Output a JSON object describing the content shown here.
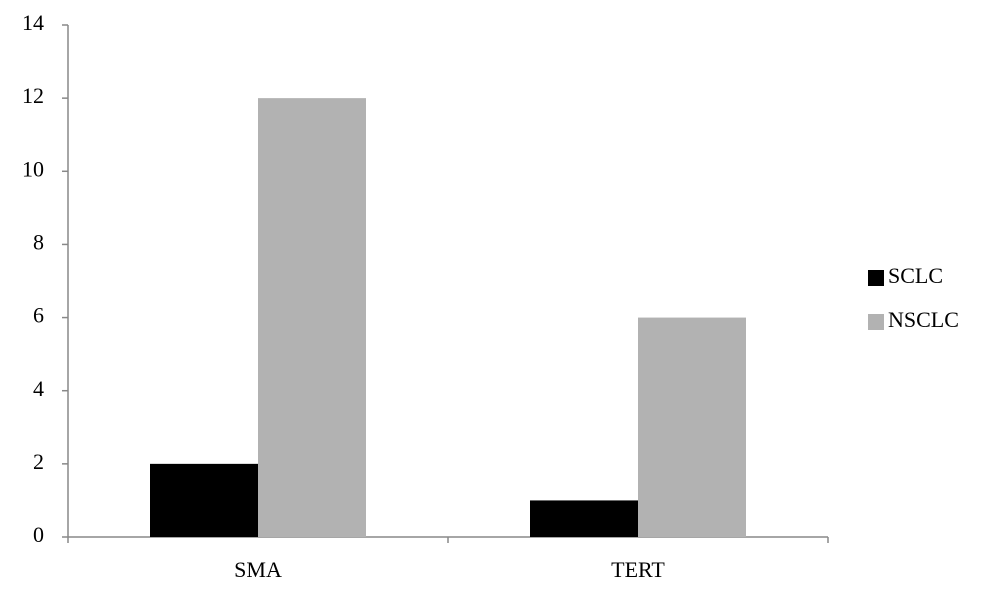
{
  "chart_data": {
    "type": "bar",
    "categories": [
      "SMA",
      "TERT"
    ],
    "series": [
      {
        "name": "SCLC",
        "color": "#000000",
        "values": [
          2,
          1
        ]
      },
      {
        "name": "NSCLC",
        "color": "#b2b2b2",
        "values": [
          12,
          6
        ]
      }
    ],
    "ylim": [
      0,
      14
    ],
    "yticks": [
      0,
      2,
      4,
      6,
      8,
      10,
      12,
      14
    ],
    "grid": false,
    "legend": "right"
  }
}
